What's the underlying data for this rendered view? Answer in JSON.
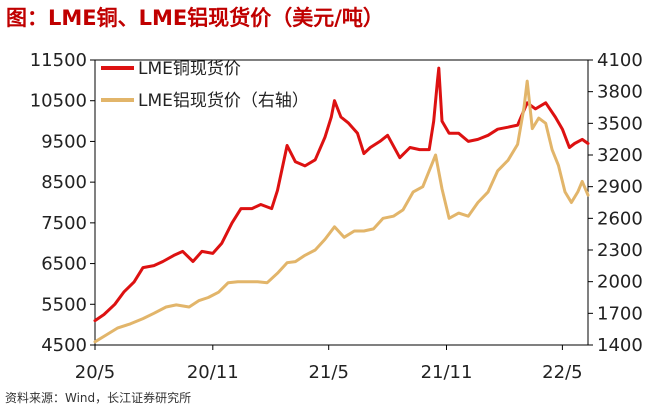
{
  "title": "图：LME铜、LME铝现货价（美元/吨）",
  "source": "资料来源：Wind，长江证券研究所",
  "colors": {
    "copper": "#dd1111",
    "aluminium": "#e2b56a",
    "title": "#c00000"
  },
  "chart_data": {
    "type": "line",
    "title": "图：LME铜、LME铝现货价（美元/吨）",
    "xlabel": "",
    "ylabel_left": "",
    "ylabel_right": "",
    "x_ticks": [
      "20/5",
      "20/11",
      "21/5",
      "21/11",
      "22/5"
    ],
    "y_left_ticks": [
      "11500",
      "10500",
      "9500",
      "8500",
      "7500",
      "6500",
      "5500",
      "4500"
    ],
    "y_right_ticks": [
      "4100",
      "3800",
      "3500",
      "3200",
      "2900",
      "2600",
      "2300",
      "2000",
      "1700",
      "1400"
    ],
    "ylim_left": [
      4500,
      11500
    ],
    "ylim_right": [
      1400,
      4100
    ],
    "xlim": [
      "2020-05-01",
      "2022-06-10"
    ],
    "grid": false,
    "legend_position": "top-left",
    "series": [
      {
        "name": "LME铜现货价",
        "axis": "left",
        "points": [
          [
            "2020-05-01",
            5100
          ],
          [
            "2020-05-15",
            5250
          ],
          [
            "2020-06-01",
            5500
          ],
          [
            "2020-06-15",
            5800
          ],
          [
            "2020-07-01",
            6050
          ],
          [
            "2020-07-15",
            6400
          ],
          [
            "2020-08-01",
            6450
          ],
          [
            "2020-08-15",
            6550
          ],
          [
            "2020-09-01",
            6700
          ],
          [
            "2020-09-15",
            6800
          ],
          [
            "2020-10-01",
            6550
          ],
          [
            "2020-10-15",
            6800
          ],
          [
            "2020-11-01",
            6750
          ],
          [
            "2020-11-15",
            7000
          ],
          [
            "2020-12-01",
            7500
          ],
          [
            "2020-12-15",
            7850
          ],
          [
            "2021-01-01",
            7850
          ],
          [
            "2021-01-15",
            7950
          ],
          [
            "2021-02-01",
            7850
          ],
          [
            "2021-02-10",
            8300
          ],
          [
            "2021-02-25",
            9400
          ],
          [
            "2021-03-10",
            9000
          ],
          [
            "2021-03-25",
            8900
          ],
          [
            "2021-04-10",
            9050
          ],
          [
            "2021-04-25",
            9600
          ],
          [
            "2021-05-05",
            10100
          ],
          [
            "2021-05-10",
            10500
          ],
          [
            "2021-05-20",
            10100
          ],
          [
            "2021-06-01",
            9950
          ],
          [
            "2021-06-15",
            9700
          ],
          [
            "2021-06-25",
            9200
          ],
          [
            "2021-07-05",
            9350
          ],
          [
            "2021-07-20",
            9500
          ],
          [
            "2021-08-01",
            9650
          ],
          [
            "2021-08-20",
            9100
          ],
          [
            "2021-09-05",
            9350
          ],
          [
            "2021-09-20",
            9300
          ],
          [
            "2021-10-05",
            9300
          ],
          [
            "2021-10-12",
            10000
          ],
          [
            "2021-10-18",
            11000
          ],
          [
            "2021-10-20",
            11300
          ],
          [
            "2021-10-25",
            10000
          ],
          [
            "2021-11-05",
            9700
          ],
          [
            "2021-11-20",
            9700
          ],
          [
            "2021-12-05",
            9500
          ],
          [
            "2021-12-20",
            9550
          ],
          [
            "2022-01-05",
            9650
          ],
          [
            "2022-01-20",
            9800
          ],
          [
            "2022-02-05",
            9850
          ],
          [
            "2022-02-20",
            9900
          ],
          [
            "2022-03-07",
            10450
          ],
          [
            "2022-03-20",
            10300
          ],
          [
            "2022-04-05",
            10450
          ],
          [
            "2022-04-20",
            10100
          ],
          [
            "2022-05-01",
            9800
          ],
          [
            "2022-05-12",
            9350
          ],
          [
            "2022-05-20",
            9450
          ],
          [
            "2022-06-01",
            9550
          ],
          [
            "2022-06-10",
            9450
          ]
        ]
      },
      {
        "name": "LME铝现货价（右轴）",
        "axis": "right",
        "points": [
          [
            "2020-05-01",
            1430
          ],
          [
            "2020-05-20",
            1500
          ],
          [
            "2020-06-05",
            1560
          ],
          [
            "2020-06-25",
            1600
          ],
          [
            "2020-07-15",
            1650
          ],
          [
            "2020-08-01",
            1700
          ],
          [
            "2020-08-20",
            1760
          ],
          [
            "2020-09-05",
            1780
          ],
          [
            "2020-09-25",
            1760
          ],
          [
            "2020-10-10",
            1820
          ],
          [
            "2020-10-25",
            1850
          ],
          [
            "2020-11-10",
            1900
          ],
          [
            "2020-11-25",
            1990
          ],
          [
            "2020-12-10",
            2000
          ],
          [
            "2020-12-25",
            2000
          ],
          [
            "2021-01-10",
            2000
          ],
          [
            "2021-01-25",
            1990
          ],
          [
            "2021-02-10",
            2080
          ],
          [
            "2021-02-25",
            2180
          ],
          [
            "2021-03-10",
            2190
          ],
          [
            "2021-03-25",
            2250
          ],
          [
            "2021-04-10",
            2300
          ],
          [
            "2021-04-25",
            2400
          ],
          [
            "2021-05-10",
            2520
          ],
          [
            "2021-05-25",
            2420
          ],
          [
            "2021-06-10",
            2480
          ],
          [
            "2021-06-25",
            2480
          ],
          [
            "2021-07-10",
            2500
          ],
          [
            "2021-07-25",
            2600
          ],
          [
            "2021-08-10",
            2620
          ],
          [
            "2021-08-25",
            2680
          ],
          [
            "2021-09-10",
            2850
          ],
          [
            "2021-09-25",
            2900
          ],
          [
            "2021-10-05",
            3050
          ],
          [
            "2021-10-15",
            3200
          ],
          [
            "2021-10-25",
            2880
          ],
          [
            "2021-11-05",
            2600
          ],
          [
            "2021-11-20",
            2650
          ],
          [
            "2021-12-05",
            2620
          ],
          [
            "2021-12-20",
            2750
          ],
          [
            "2022-01-05",
            2850
          ],
          [
            "2022-01-20",
            3050
          ],
          [
            "2022-02-05",
            3150
          ],
          [
            "2022-02-20",
            3300
          ],
          [
            "2022-03-02",
            3650
          ],
          [
            "2022-03-07",
            3900
          ],
          [
            "2022-03-15",
            3450
          ],
          [
            "2022-03-25",
            3550
          ],
          [
            "2022-04-05",
            3500
          ],
          [
            "2022-04-15",
            3250
          ],
          [
            "2022-04-25",
            3100
          ],
          [
            "2022-05-05",
            2850
          ],
          [
            "2022-05-15",
            2750
          ],
          [
            "2022-05-25",
            2850
          ],
          [
            "2022-06-01",
            2950
          ],
          [
            "2022-06-10",
            2820
          ]
        ]
      }
    ]
  }
}
